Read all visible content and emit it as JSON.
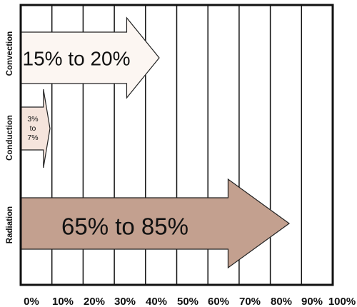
{
  "chart_data": {
    "type": "bar",
    "categories": [
      "Convection",
      "Conduction",
      "Radiation"
    ],
    "x_ticks": [
      "0%",
      "10%",
      "20%",
      "30%",
      "40%",
      "50%",
      "60%",
      "70%",
      "80%",
      "90%",
      "100%"
    ],
    "xlim": [
      0,
      100
    ],
    "grid": true,
    "series": [
      {
        "values": [
          [
            15,
            20
          ],
          [
            3,
            7
          ],
          [
            65,
            85
          ]
        ],
        "labels": [
          "15% to 20%",
          "3%\nto\n7%",
          "65% to 85%"
        ],
        "colors": [
          "#fcf6f2",
          "#f5e4dc",
          "#c3a08f"
        ]
      }
    ],
    "title": "",
    "xlabel": "",
    "ylabel": ""
  }
}
